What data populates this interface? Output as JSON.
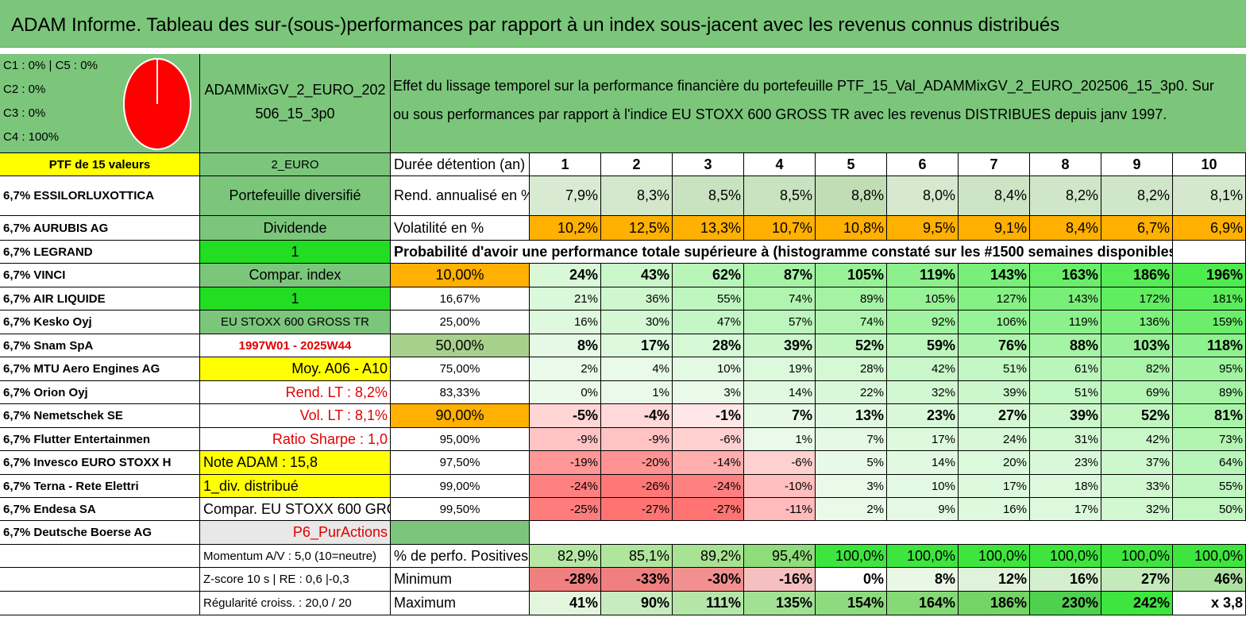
{
  "title": "ADAM Informe. Tableau des sur-(sous-)performances par rapport à un index sous-jacent avec les revenus connus distribués",
  "legend": [
    "C1 : 0% | C5 : 0%",
    "C2 : 0%",
    "C3 : 0%",
    "C4 : 100%"
  ],
  "pie": {
    "c4_percent": 100,
    "color": "#ff0000"
  },
  "fund_name_line1": "ADAMMixGV_2_EURO_202",
  "fund_name_line2": "506_15_3p0",
  "description_line1": "Effet du lissage temporel sur la performance financière du portefeuille PTF_15_Val_ADAMMixGV_2_EURO_202506_15_3p0. Sur",
  "description_line2": "ou sous performances par rapport à l'indice EU STOXX 600 GROSS TR avec les revenus DISTRIBUES depuis janv 1997.",
  "ptf_label": "PTF de 15 valeurs",
  "holdings": [
    "6,7% ESSILORLUXOTTICA",
    "6,7% AURUBIS AG",
    "6,7% LEGRAND",
    "6,7% VINCI",
    "6,7% AIR LIQUIDE",
    "6,7% Kesko Oyj",
    "6,7% Snam SpA",
    "6,7% MTU Aero Engines AG",
    "6,7% Orion Oyj",
    "6,7% Nemetschek SE",
    "6,7% Flutter Entertainmen",
    "6,7% Invesco EURO STOXX H",
    "6,7% Terna - Rete Elettri",
    "6,7% Endesa SA",
    "6,7% Deutsche Boerse AG"
  ],
  "info": [
    "2_EURO",
    "Portefeuille diversifié",
    "Dividende",
    "1",
    "Compar. index",
    "1",
    "EU STOXX 600 GROSS TR",
    "1997W01 - 2025W44",
    "Moy. A06 - A10",
    "Rend. LT : 8,2%",
    "Vol. LT : 8,1%",
    "Ratio Sharpe : 1,0",
    "Note ADAM : 15,8",
    "1_div. distribué",
    "Compar. EU STOXX 600 GROSS TI",
    "P6_PurActions"
  ],
  "bottom_info": [
    "Momentum A/V : 5,0 (10=neutre)",
    "Z-score 10 s | RE : 0,6 |-0,3",
    "Régularité croiss. : 20,0 / 20"
  ],
  "row_labels": {
    "duration": "Durée détention (an)",
    "return": "Rend. annualisé en %",
    "volatility": "Volatilité en %",
    "positive": "% de perfo. Positives",
    "minimum": "Minimum",
    "maximum": "Maximum"
  },
  "probability_header": "Probabilité d'avoir une performance totale supérieure à (histogramme constaté sur les #1500 semaines disponibles)",
  "years": [
    "1",
    "2",
    "3",
    "4",
    "5",
    "6",
    "7",
    "8",
    "9",
    "10"
  ],
  "returns": [
    "7,9%",
    "8,3%",
    "8,5%",
    "8,5%",
    "8,8%",
    "8,0%",
    "8,4%",
    "8,2%",
    "8,2%",
    "8,1%"
  ],
  "volatility": [
    "10,2%",
    "12,5%",
    "13,3%",
    "10,7%",
    "10,8%",
    "9,5%",
    "9,1%",
    "8,4%",
    "6,7%",
    "6,9%"
  ],
  "prob_rows": [
    {
      "p": "10,00%",
      "v": [
        "24%",
        "43%",
        "62%",
        "87%",
        "105%",
        "119%",
        "143%",
        "163%",
        "186%",
        "196%"
      ]
    },
    {
      "p": "16,67%",
      "v": [
        "21%",
        "36%",
        "55%",
        "74%",
        "89%",
        "105%",
        "127%",
        "143%",
        "172%",
        "181%"
      ]
    },
    {
      "p": "25,00%",
      "v": [
        "16%",
        "30%",
        "47%",
        "57%",
        "74%",
        "92%",
        "106%",
        "119%",
        "136%",
        "159%"
      ]
    },
    {
      "p": "50,00%",
      "v": [
        "8%",
        "17%",
        "28%",
        "39%",
        "52%",
        "59%",
        "76%",
        "88%",
        "103%",
        "118%"
      ]
    },
    {
      "p": "75,00%",
      "v": [
        "2%",
        "4%",
        "10%",
        "19%",
        "28%",
        "42%",
        "51%",
        "61%",
        "82%",
        "95%"
      ]
    },
    {
      "p": "83,33%",
      "v": [
        "0%",
        "1%",
        "3%",
        "14%",
        "22%",
        "32%",
        "39%",
        "51%",
        "69%",
        "89%"
      ]
    },
    {
      "p": "90,00%",
      "v": [
        "-5%",
        "-4%",
        "-1%",
        "7%",
        "13%",
        "23%",
        "27%",
        "39%",
        "52%",
        "81%"
      ]
    },
    {
      "p": "95,00%",
      "v": [
        "-9%",
        "-9%",
        "-6%",
        "1%",
        "7%",
        "17%",
        "24%",
        "31%",
        "42%",
        "73%"
      ]
    },
    {
      "p": "97,50%",
      "v": [
        "-19%",
        "-20%",
        "-14%",
        "-6%",
        "5%",
        "14%",
        "20%",
        "23%",
        "37%",
        "64%"
      ]
    },
    {
      "p": "99,00%",
      "v": [
        "-24%",
        "-26%",
        "-24%",
        "-10%",
        "3%",
        "10%",
        "17%",
        "18%",
        "33%",
        "55%"
      ]
    },
    {
      "p": "99,50%",
      "v": [
        "-25%",
        "-27%",
        "-27%",
        "-11%",
        "2%",
        "9%",
        "16%",
        "17%",
        "32%",
        "50%"
      ]
    }
  ],
  "positive": [
    "82,9%",
    "85,1%",
    "89,2%",
    "95,4%",
    "100,0%",
    "100,0%",
    "100,0%",
    "100,0%",
    "100,0%",
    "100,0%"
  ],
  "minimum": [
    "-28%",
    "-33%",
    "-30%",
    "-16%",
    "0%",
    "8%",
    "12%",
    "16%",
    "27%",
    "46%"
  ],
  "maximum": [
    "41%",
    "90%",
    "111%",
    "135%",
    "154%",
    "164%",
    "186%",
    "230%",
    "242%",
    "x 3,8"
  ]
}
